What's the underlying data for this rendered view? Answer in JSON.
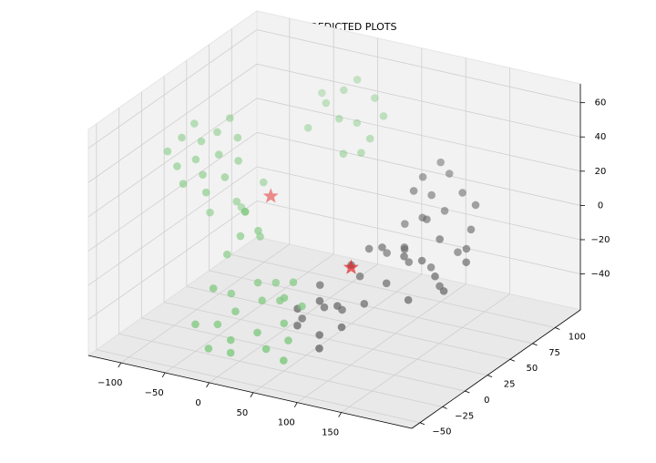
{
  "chart_data": {
    "type": "scatter3d",
    "title": "KMEANS PREDICTED PLOTS",
    "xlim": [
      -137,
      230
    ],
    "ylim": [
      -59,
      128
    ],
    "zlim": [
      -61,
      71
    ],
    "xticks": [
      {
        "value": -100,
        "label": "−100"
      },
      {
        "value": -50,
        "label": "−50"
      },
      0,
      50,
      100,
      150
    ],
    "yticks": [
      {
        "value": -50,
        "label": "−50"
      },
      {
        "value": -25,
        "label": "−25"
      },
      0,
      25,
      50,
      75,
      100
    ],
    "zticks": [
      {
        "value": -40,
        "label": "−40"
      },
      {
        "value": -20,
        "label": "−20"
      },
      0,
      20,
      40,
      60
    ],
    "grid": true,
    "depthshade": true,
    "series": [
      {
        "color": "#7fc97f",
        "marker": "circle",
        "x": [
          -128,
          -120,
          -112,
          -105,
          -98,
          -92,
          -86,
          -80,
          -74,
          -68,
          -118,
          -100,
          -90,
          -76,
          -64,
          -40,
          -35,
          -28,
          -45,
          -20,
          -50,
          -20,
          -10,
          0,
          10,
          20,
          30,
          -25,
          -5,
          15,
          35,
          40,
          5,
          -15,
          25,
          50,
          -30,
          45,
          0,
          60,
          -35,
          -30,
          -20,
          -10,
          0,
          10,
          20,
          -40,
          -50,
          5,
          25,
          -15,
          15,
          -70,
          -80,
          -60,
          -90
        ],
        "y": [
          20,
          28,
          15,
          35,
          22,
          40,
          18,
          30,
          45,
          25,
          40,
          10,
          52,
          12,
          36,
          20,
          10,
          25,
          5,
          15,
          30,
          -30,
          -20,
          -35,
          -10,
          -25,
          -5,
          -10,
          0,
          5,
          -30,
          -15,
          -40,
          -45,
          10,
          -20,
          -25,
          0,
          15,
          -35,
          -40,
          100,
          110,
          95,
          105,
          115,
          100,
          90,
          115,
          85,
          110,
          120,
          95,
          40,
          55,
          60,
          30
        ],
        "z": [
          30,
          36,
          25,
          33,
          28,
          38,
          22,
          30,
          35,
          20,
          40,
          18,
          42,
          15,
          26,
          5,
          -5,
          -10,
          -15,
          -2,
          0,
          -40,
          -35,
          -45,
          -30,
          -42,
          -28,
          -30,
          -25,
          -35,
          -48,
          -38,
          -50,
          -48,
          -25,
          -45,
          -22,
          -33,
          -30,
          -50,
          -38,
          40,
          45,
          35,
          30,
          42,
          25,
          28,
          38,
          20,
          35,
          48,
          18,
          0,
          -10,
          5,
          -5
        ]
      },
      {
        "color": "#666666",
        "marker": "circle",
        "x": [
          40,
          50,
          60,
          70,
          55,
          45,
          65,
          75,
          80,
          35,
          85,
          90,
          120,
          130,
          140,
          150,
          160,
          125,
          135,
          145,
          155,
          110,
          165,
          170,
          115,
          140,
          100,
          150,
          90,
          100,
          110,
          120,
          95,
          105,
          130,
          85,
          70,
          80,
          90,
          75,
          95,
          60,
          85,
          105
        ],
        "y": [
          0,
          -10,
          5,
          -5,
          15,
          20,
          25,
          10,
          -15,
          10,
          30,
          0,
          40,
          50,
          60,
          45,
          70,
          65,
          30,
          55,
          80,
          55,
          40,
          60,
          70,
          80,
          40,
          90,
          80,
          90,
          100,
          85,
          105,
          75,
          95,
          95,
          50,
          60,
          45,
          35,
          65,
          40,
          75,
          55
        ],
        "z": [
          -35,
          -40,
          -30,
          -45,
          -38,
          -28,
          -42,
          -33,
          -48,
          -45,
          -38,
          -40,
          -10,
          -15,
          -5,
          -20,
          -12,
          -25,
          -30,
          -30,
          -5,
          -20,
          -25,
          -15,
          0,
          -20,
          -28,
          5,
          10,
          5,
          15,
          0,
          18,
          -2,
          8,
          12,
          -15,
          -20,
          -10,
          -25,
          -18,
          -22,
          -8,
          -12
        ]
      },
      {
        "color": "#e31a1c",
        "marker": "star",
        "x": [
          65,
          -64
        ],
        "y": [
          35,
          72
        ],
        "z": [
          -21,
          -8
        ]
      }
    ]
  }
}
